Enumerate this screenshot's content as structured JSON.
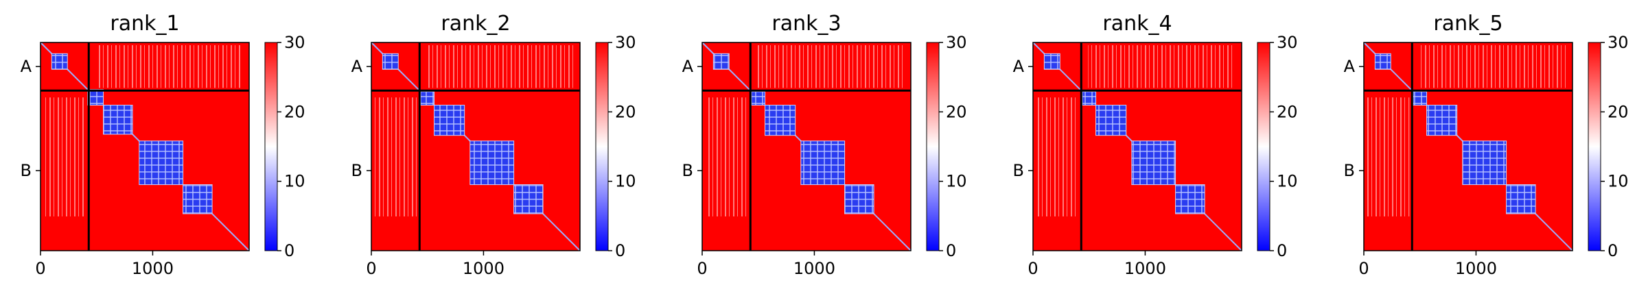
{
  "chart_data": [
    {
      "type": "heatmap",
      "title": "rank_1",
      "x_ticks": [
        0,
        1000
      ],
      "y_tick_labels": [
        "A",
        "B"
      ],
      "xlim": [
        0,
        1860
      ],
      "chain_boundary": 430,
      "colorbar": {
        "range": [
          0,
          30
        ],
        "ticks": [
          0,
          10,
          20,
          30
        ]
      },
      "blue_blocks": [
        [
          100,
          240
        ],
        [
          420,
          560
        ],
        [
          560,
          820
        ],
        [
          880,
          1270
        ],
        [
          1270,
          1530
        ]
      ]
    },
    {
      "type": "heatmap",
      "title": "rank_2",
      "x_ticks": [
        0,
        1000
      ],
      "y_tick_labels": [
        "A",
        "B"
      ],
      "xlim": [
        0,
        1860
      ],
      "chain_boundary": 430,
      "colorbar": {
        "range": [
          0,
          30
        ],
        "ticks": [
          0,
          10,
          20,
          30
        ]
      },
      "blue_blocks": [
        [
          100,
          240
        ],
        [
          440,
          560
        ],
        [
          560,
          830
        ],
        [
          880,
          1270
        ],
        [
          1270,
          1530
        ]
      ]
    },
    {
      "type": "heatmap",
      "title": "rank_3",
      "x_ticks": [
        0,
        1000
      ],
      "y_tick_labels": [
        "A",
        "B"
      ],
      "xlim": [
        0,
        1860
      ],
      "chain_boundary": 430,
      "colorbar": {
        "range": [
          0,
          30
        ],
        "ticks": [
          0,
          10,
          20,
          30
        ]
      },
      "blue_blocks": [
        [
          100,
          240
        ],
        [
          440,
          560
        ],
        [
          560,
          830
        ],
        [
          880,
          1270
        ],
        [
          1270,
          1530
        ]
      ]
    },
    {
      "type": "heatmap",
      "title": "rank_4",
      "x_ticks": [
        0,
        1000
      ],
      "y_tick_labels": [
        "A",
        "B"
      ],
      "xlim": [
        0,
        1860
      ],
      "chain_boundary": 430,
      "colorbar": {
        "range": [
          0,
          30
        ],
        "ticks": [
          0,
          10,
          20,
          30
        ]
      },
      "blue_blocks": [
        [
          100,
          240
        ],
        [
          440,
          560
        ],
        [
          560,
          830
        ],
        [
          880,
          1270
        ],
        [
          1270,
          1530
        ]
      ]
    },
    {
      "type": "heatmap",
      "title": "rank_5",
      "x_ticks": [
        0,
        1000
      ],
      "y_tick_labels": [
        "A",
        "B"
      ],
      "xlim": [
        0,
        1860
      ],
      "chain_boundary": 430,
      "colorbar": {
        "range": [
          0,
          30
        ],
        "ticks": [
          0,
          10,
          20,
          30
        ]
      },
      "blue_blocks": [
        [
          100,
          240
        ],
        [
          440,
          560
        ],
        [
          560,
          830
        ],
        [
          880,
          1270
        ],
        [
          1270,
          1530
        ]
      ]
    }
  ],
  "colors": {
    "low": "#0000ff",
    "mid": "#ffffff",
    "high": "#ff0000",
    "boundary": "#000000"
  }
}
